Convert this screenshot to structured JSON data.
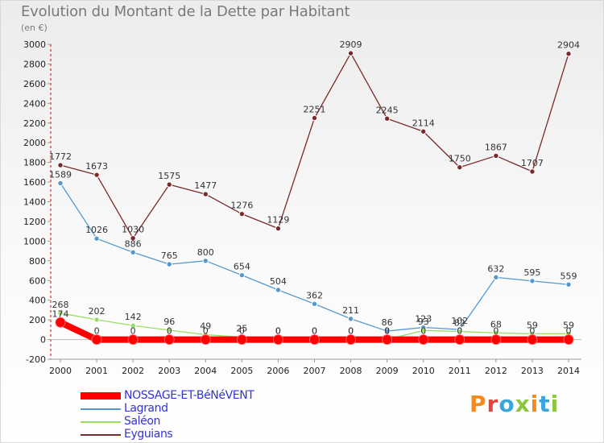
{
  "title": "Evolution du Montant de la Dette par Habitant",
  "unit_label": "(en €)",
  "logo_text": "Proxiti",
  "logo_colors": [
    "#f28c1e",
    "#e3433a",
    "#3ba6dc",
    "#8cc63e",
    "#f28c1e",
    "#3ba6dc",
    "#8cc63e"
  ],
  "chart_data": {
    "type": "line",
    "title": "Evolution du Montant de la Dette par Habitant",
    "ylabel": "(en €)",
    "xlabel": "",
    "x": [
      2000,
      2001,
      2002,
      2003,
      2004,
      2005,
      2006,
      2007,
      2008,
      2009,
      2010,
      2011,
      2012,
      2013,
      2014
    ],
    "ylim": [
      -200,
      3000
    ],
    "ytick_step": 200,
    "grid": false,
    "legend_position": "bottom-left",
    "series": [
      {
        "name": "NOSSAGE-ET-BéNéVENT",
        "color": "#ff0000",
        "emphasis": true,
        "values": [
          174,
          0,
          0,
          0,
          0,
          0,
          0,
          0,
          0,
          0,
          0,
          0,
          0,
          0,
          0
        ],
        "labels": [
          "174",
          "0",
          "0",
          "0",
          "0",
          "0",
          "0",
          "0",
          "0",
          "0",
          "0",
          "0",
          "0",
          "0",
          "0"
        ]
      },
      {
        "name": "Lagrand",
        "color": "#5599cc",
        "emphasis": false,
        "values": [
          1589,
          1026,
          886,
          765,
          800,
          654,
          504,
          362,
          211,
          86,
          123,
          102,
          632,
          595,
          559
        ],
        "labels": [
          "1589",
          "1026",
          "886",
          "765",
          "800",
          "654",
          "504",
          "362",
          "211",
          "86",
          "123",
          "102",
          "632",
          "595",
          "559"
        ]
      },
      {
        "name": "Saléon",
        "color": "#99dd66",
        "emphasis": false,
        "values": [
          268,
          202,
          142,
          96,
          49,
          25,
          0,
          0,
          0,
          0,
          93,
          82,
          68,
          59,
          59
        ],
        "labels": [
          "268",
          "202",
          "142",
          "96",
          "49",
          "25",
          "0",
          "0",
          "0",
          "0",
          "93",
          "82",
          "68",
          "59",
          "59"
        ]
      },
      {
        "name": "Eyguians",
        "color": "#7a2a2a",
        "emphasis": false,
        "values": [
          1772,
          1673,
          1030,
          1575,
          1477,
          1276,
          1129,
          2251,
          2909,
          2245,
          2114,
          1750,
          1867,
          1707,
          2904
        ],
        "labels": [
          "1772",
          "1673",
          "1030",
          "1575",
          "1477",
          "1276",
          "1129",
          "2251",
          "2909",
          "2245",
          "2114",
          "1750",
          "1867",
          "1707",
          "2904"
        ]
      }
    ]
  }
}
